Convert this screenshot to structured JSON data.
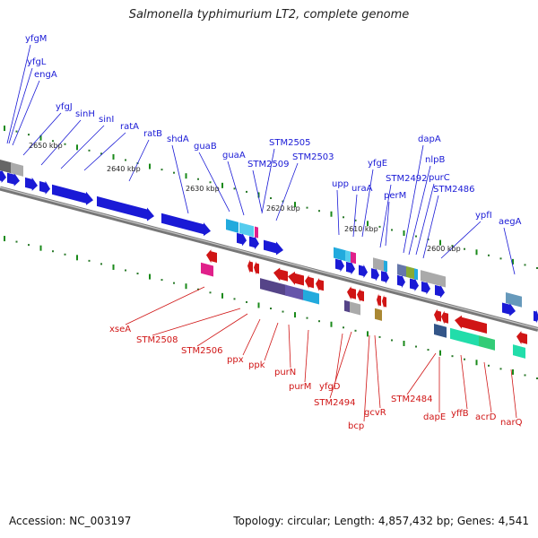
{
  "title": "Salmonella typhimurium LT2, complete genome",
  "accession": "Accession: NC_003197",
  "summary": "Topology: circular; Length: 4,857,432 bp; Genes: 4,541",
  "colors": {
    "forward": "#1a1ad6",
    "reverse": "#d01515",
    "backbone": "#888888",
    "tick_major": "#1a8a1a"
  },
  "bp_ticks": [
    "2650 kbp",
    "2640 kbp",
    "2630 kbp",
    "2620 kbp",
    "2610 kbp",
    "2600 kbp"
  ],
  "forward_genes": [
    "yfgM",
    "yfgL",
    "engA",
    "yfgJ",
    "sinH",
    "sinI",
    "ratA",
    "ratB",
    "shdA",
    "guaB",
    "guaA",
    "STM2509",
    "STM2505",
    "STM2503",
    "upp",
    "uraA",
    "yfgE",
    "STM2492",
    "perM",
    "dapA",
    "nlpB",
    "purC",
    "STM2486",
    "ypfI",
    "aegA"
  ],
  "reverse_genes": [
    "xseA",
    "STM2508",
    "STM2506",
    "ppx",
    "ppk",
    "purN",
    "purM",
    "yfgD",
    "STM2494",
    "bcp",
    "gcvR",
    "STM2484",
    "dapE",
    "yffB",
    "acrD",
    "narQ"
  ]
}
